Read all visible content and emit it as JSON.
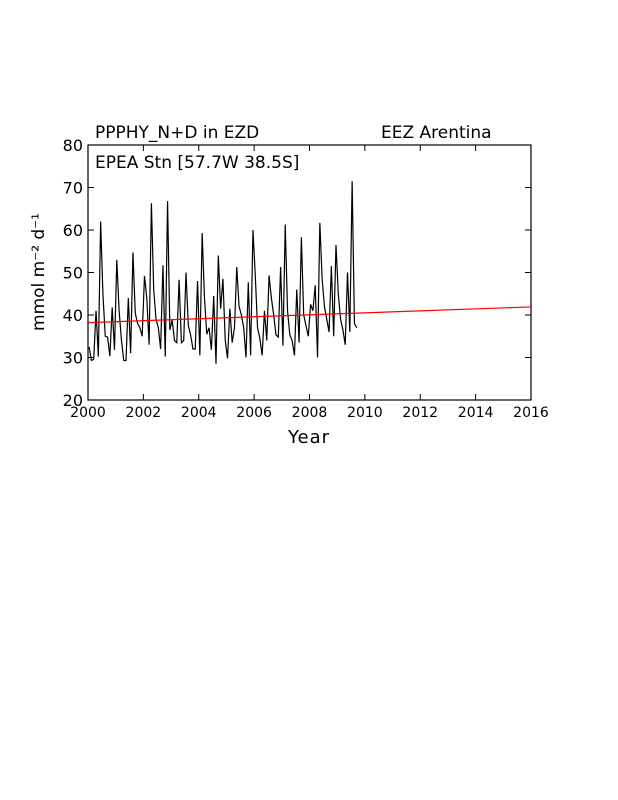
{
  "chart_data": {
    "type": "line",
    "title_left": "PPPHY_N+D in EZD",
    "title_right": "EEZ  Arentina",
    "subtitle": "EPEA Stn [57.7W 38.5S]",
    "xlabel": "Year",
    "ylabel": "mmol m⁻² d⁻¹",
    "xlim": [
      2000,
      2016
    ],
    "ylim": [
      20,
      80
    ],
    "x_ticks": [
      2000,
      2002,
      2004,
      2006,
      2008,
      2010,
      2012,
      2014,
      2016
    ],
    "y_ticks": [
      20,
      30,
      40,
      50,
      60,
      70,
      80
    ],
    "grid": false,
    "series": [
      {
        "color": "#000000",
        "x_start": 2000.04,
        "x_step": 0.0833333,
        "values": [
          32.5,
          29.3,
          29.6,
          41.0,
          30.2,
          62.0,
          44.8,
          35.0,
          34.8,
          30.3,
          41.8,
          31.8,
          53.0,
          41.0,
          34.2,
          29.3,
          29.3,
          44.0,
          31.0,
          54.7,
          40.5,
          38.0,
          37.0,
          35.0,
          49.2,
          44.0,
          33.0,
          66.3,
          46.0,
          39.0,
          37.0,
          32.0,
          51.7,
          30.2,
          66.8,
          36.5,
          38.8,
          34.0,
          33.5,
          48.3,
          33.5,
          34.0,
          50.0,
          37.5,
          35.3,
          32.0,
          32.0,
          48.0,
          30.5,
          59.3,
          44.0,
          35.5,
          37.0,
          31.8,
          44.5,
          28.5,
          54.0,
          41.5,
          48.5,
          34.0,
          29.8,
          41.5,
          33.5,
          37.0,
          51.3,
          42.0,
          40.0,
          37.0,
          30.0,
          47.7,
          30.5,
          60.0,
          49.5,
          37.0,
          34.5,
          30.5,
          41.0,
          34.0,
          49.3,
          44.0,
          40.0,
          35.3,
          34.8,
          51.3,
          32.8,
          61.3,
          41.0,
          35.3,
          34.0,
          30.5,
          46.0,
          33.5,
          58.3,
          40.0,
          37.5,
          35.0,
          42.5,
          41.0,
          47.0,
          30.0,
          61.7,
          48.5,
          42.0,
          39.0,
          36.0,
          51.5,
          35.0,
          56.5,
          45.0,
          39.0,
          36.5,
          33.0,
          50.0,
          36.0,
          71.5,
          38.0,
          37.0
        ]
      },
      {
        "color": "#ff0000",
        "x": [
          2000,
          2016
        ],
        "values": [
          38.2,
          41.9
        ]
      }
    ]
  }
}
